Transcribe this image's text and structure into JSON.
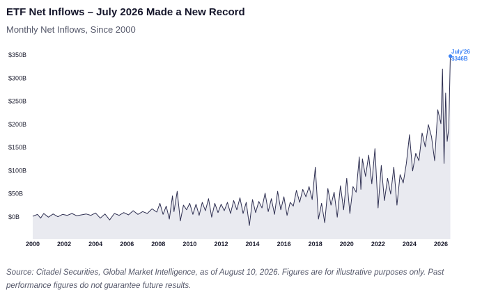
{
  "header": {
    "title": "ETF Net Inflows – July 2026 Made a New Record",
    "subtitle": "Monthly Net Inflows, Since 2000"
  },
  "footer": {
    "source": "Source: Citadel Securities, Global Market Intelligence, as of August 10, 2026. Figures are for illustrative purposes only. Past performance figures do not guarantee future results."
  },
  "colors": {
    "line": "#2f3052",
    "area": "#e9eaf0",
    "highlight": "#3b82f6",
    "axis_text": "#1b1c2e"
  },
  "chart_data": {
    "type": "area",
    "title": "ETF Net Inflows – July 2026 Made a New Record",
    "subtitle": "Monthly Net Inflows, Since 2000",
    "xlabel": "",
    "ylabel": "",
    "unit": "$B",
    "ylim": [
      -50,
      350
    ],
    "xlim": [
      2000,
      2026.6
    ],
    "yticks": [
      0,
      50,
      100,
      150,
      200,
      250,
      300,
      350
    ],
    "ytick_labels": [
      "$0B",
      "$50B",
      "$100B",
      "$150B",
      "$200B",
      "$250B",
      "$300B",
      "$350B"
    ],
    "xticks": [
      2000,
      2002,
      2004,
      2006,
      2008,
      2010,
      2012,
      2014,
      2016,
      2018,
      2020,
      2022,
      2024,
      2026
    ],
    "xtick_labels": [
      "2000",
      "2002",
      "2004",
      "2006",
      "2008",
      "2010",
      "2012",
      "2014",
      "2016",
      "2018",
      "2020",
      "2022",
      "2024",
      "2026"
    ],
    "grid": false,
    "annotation": {
      "x": "July'26",
      "label": "July'26",
      "value_label": "$346B",
      "value": 346
    },
    "series": [
      {
        "points": [
          [
            2000.0,
            0
          ],
          [
            2000.3,
            4
          ],
          [
            2000.5,
            -4
          ],
          [
            2000.7,
            6
          ],
          [
            2001.0,
            -2
          ],
          [
            2001.3,
            5
          ],
          [
            2001.6,
            -1
          ],
          [
            2001.9,
            4
          ],
          [
            2002.2,
            2
          ],
          [
            2002.5,
            6
          ],
          [
            2002.8,
            1
          ],
          [
            2003.1,
            3
          ],
          [
            2003.4,
            5
          ],
          [
            2003.7,
            2
          ],
          [
            2004.0,
            7
          ],
          [
            2004.3,
            -4
          ],
          [
            2004.6,
            5
          ],
          [
            2004.9,
            -8
          ],
          [
            2005.2,
            6
          ],
          [
            2005.5,
            2
          ],
          [
            2005.8,
            8
          ],
          [
            2006.1,
            3
          ],
          [
            2006.4,
            12
          ],
          [
            2006.7,
            4
          ],
          [
            2007.0,
            10
          ],
          [
            2007.3,
            6
          ],
          [
            2007.6,
            16
          ],
          [
            2007.9,
            9
          ],
          [
            2008.1,
            28
          ],
          [
            2008.3,
            4
          ],
          [
            2008.5,
            22
          ],
          [
            2008.7,
            -6
          ],
          [
            2008.9,
            44
          ],
          [
            2009.0,
            10
          ],
          [
            2009.2,
            54
          ],
          [
            2009.4,
            -10
          ],
          [
            2009.6,
            24
          ],
          [
            2009.8,
            14
          ],
          [
            2010.0,
            28
          ],
          [
            2010.2,
            4
          ],
          [
            2010.4,
            26
          ],
          [
            2010.6,
            2
          ],
          [
            2010.8,
            30
          ],
          [
            2011.0,
            12
          ],
          [
            2011.2,
            38
          ],
          [
            2011.4,
            -2
          ],
          [
            2011.6,
            28
          ],
          [
            2011.8,
            8
          ],
          [
            2012.0,
            26
          ],
          [
            2012.2,
            12
          ],
          [
            2012.4,
            30
          ],
          [
            2012.6,
            6
          ],
          [
            2012.8,
            34
          ],
          [
            2013.0,
            14
          ],
          [
            2013.2,
            40
          ],
          [
            2013.4,
            6
          ],
          [
            2013.6,
            30
          ],
          [
            2013.8,
            -20
          ],
          [
            2014.0,
            36
          ],
          [
            2014.2,
            8
          ],
          [
            2014.4,
            32
          ],
          [
            2014.6,
            18
          ],
          [
            2014.8,
            50
          ],
          [
            2015.0,
            10
          ],
          [
            2015.2,
            38
          ],
          [
            2015.4,
            4
          ],
          [
            2015.6,
            54
          ],
          [
            2015.8,
            14
          ],
          [
            2016.0,
            42
          ],
          [
            2016.2,
            2
          ],
          [
            2016.4,
            30
          ],
          [
            2016.6,
            22
          ],
          [
            2016.8,
            56
          ],
          [
            2017.0,
            30
          ],
          [
            2017.2,
            58
          ],
          [
            2017.4,
            42
          ],
          [
            2017.6,
            64
          ],
          [
            2017.8,
            36
          ],
          [
            2018.0,
            106
          ],
          [
            2018.2,
            -6
          ],
          [
            2018.4,
            28
          ],
          [
            2018.6,
            -14
          ],
          [
            2018.8,
            60
          ],
          [
            2019.0,
            24
          ],
          [
            2019.2,
            52
          ],
          [
            2019.4,
            -2
          ],
          [
            2019.6,
            66
          ],
          [
            2019.8,
            14
          ],
          [
            2020.0,
            82
          ],
          [
            2020.2,
            6
          ],
          [
            2020.4,
            64
          ],
          [
            2020.6,
            52
          ],
          [
            2020.8,
            128
          ],
          [
            2020.9,
            58
          ],
          [
            2021.0,
            124
          ],
          [
            2021.2,
            86
          ],
          [
            2021.4,
            132
          ],
          [
            2021.6,
            70
          ],
          [
            2021.8,
            146
          ],
          [
            2022.0,
            18
          ],
          [
            2022.2,
            110
          ],
          [
            2022.4,
            34
          ],
          [
            2022.6,
            82
          ],
          [
            2022.8,
            48
          ],
          [
            2023.0,
            106
          ],
          [
            2023.2,
            24
          ],
          [
            2023.4,
            90
          ],
          [
            2023.6,
            72
          ],
          [
            2023.8,
            114
          ],
          [
            2024.0,
            176
          ],
          [
            2024.2,
            98
          ],
          [
            2024.4,
            136
          ],
          [
            2024.6,
            120
          ],
          [
            2024.8,
            180
          ],
          [
            2025.0,
            150
          ],
          [
            2025.2,
            198
          ],
          [
            2025.4,
            172
          ],
          [
            2025.6,
            120
          ],
          [
            2025.8,
            230
          ],
          [
            2026.0,
            200
          ],
          [
            2026.1,
            318
          ],
          [
            2026.2,
            114
          ],
          [
            2026.3,
            266
          ],
          [
            2026.4,
            162
          ],
          [
            2026.5,
            190
          ],
          [
            2026.6,
            346
          ]
        ]
      }
    ]
  }
}
